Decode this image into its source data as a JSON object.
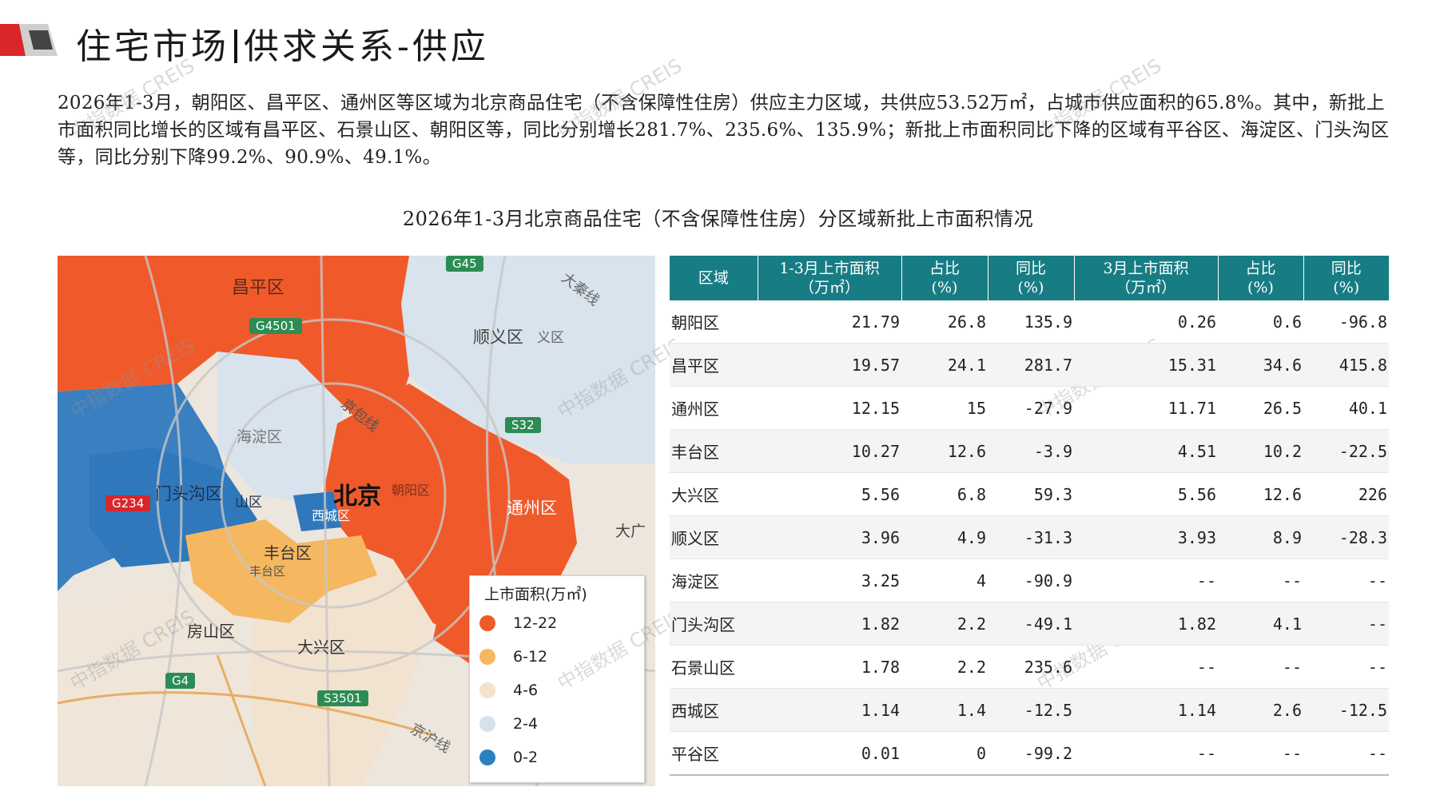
{
  "page": {
    "title_left": "住宅市场",
    "title_right": "供求关系-供应",
    "intro": "2026年1-3月，朝阳区、昌平区、通州区等区域为北京商品住宅（不含保障性住房）供应主力区域，共供应53.52万㎡，占城市供应面积的65.8%。其中，新批上市面积同比增长的区域有昌平区、石景山区、朝阳区等，同比分别增长281.7%、235.6%、135.9%；新批上市面积同比下降的区域有平谷区、海淀区、门头沟区等，同比分别下降99.2%、90.9%、49.1%。",
    "chart_title": "2026年1-3月北京商品住宅（不含保障性住房）分区域新批上市面积情况",
    "watermark": "中指数据 CREIS"
  },
  "map": {
    "labels": {
      "changping": "昌平区",
      "shunyi": "顺义区",
      "shunyi_small": "义区",
      "haidian": "海淀区",
      "mentougou": "门头沟区",
      "shijingshan": "石景山区",
      "beijing": "北京",
      "chaoyang": "朝阳区",
      "xicheng": "西城区",
      "tongzhou": "通州区",
      "fengtai": "丰台区",
      "fengtai_small": "丰台区",
      "fangshan": "房山区",
      "daxing": "大兴区",
      "daguang": "大广",
      "daqing": "大秦线",
      "jingbao": "京包线",
      "jinghu": "京沪线",
      "shan": "山区"
    },
    "shields": {
      "g45": "G45",
      "g4501": "G4501",
      "s32": "S32",
      "g234": "G234",
      "g4": "G4",
      "s3501": "S3501"
    },
    "legend": {
      "title": "上市面积(万㎡)",
      "items": [
        {
          "label": "12-22",
          "color": "#f05a2a"
        },
        {
          "label": "6-12",
          "color": "#f5b860"
        },
        {
          "label": "4-6",
          "color": "#f3e2cc"
        },
        {
          "label": "2-4",
          "color": "#d5e2ee"
        },
        {
          "label": "0-2",
          "color": "#2b80c0"
        }
      ]
    }
  },
  "table": {
    "headers": [
      {
        "l1": "区域",
        "l2": ""
      },
      {
        "l1": "1-3月上市面积",
        "l2": "（万㎡）"
      },
      {
        "l1": "占比",
        "l2": "(%)"
      },
      {
        "l1": "同比",
        "l2": "(%)"
      },
      {
        "l1": "3月上市面积",
        "l2": "（万㎡）"
      },
      {
        "l1": "占比",
        "l2": "(%)"
      },
      {
        "l1": "同比",
        "l2": "(%)"
      }
    ],
    "rows": [
      [
        "朝阳区",
        "21.79",
        "26.8",
        "135.9",
        "0.26",
        "0.6",
        "-96.8"
      ],
      [
        "昌平区",
        "19.57",
        "24.1",
        "281.7",
        "15.31",
        "34.6",
        "415.8"
      ],
      [
        "通州区",
        "12.15",
        "15",
        "-27.9",
        "11.71",
        "26.5",
        "40.1"
      ],
      [
        "丰台区",
        "10.27",
        "12.6",
        "-3.9",
        "4.51",
        "10.2",
        "-22.5"
      ],
      [
        "大兴区",
        "5.56",
        "6.8",
        "59.3",
        "5.56",
        "12.6",
        "226"
      ],
      [
        "顺义区",
        "3.96",
        "4.9",
        "-31.3",
        "3.93",
        "8.9",
        "-28.3"
      ],
      [
        "海淀区",
        "3.25",
        "4",
        "-90.9",
        "--",
        "--",
        "--"
      ],
      [
        "门头沟区",
        "1.82",
        "2.2",
        "-49.1",
        "1.82",
        "4.1",
        "--"
      ],
      [
        "石景山区",
        "1.78",
        "2.2",
        "235.6",
        "--",
        "--",
        "--"
      ],
      [
        "西城区",
        "1.14",
        "1.4",
        "-12.5",
        "1.14",
        "2.6",
        "-12.5"
      ],
      [
        "平谷区",
        "0.01",
        "0",
        "-99.2",
        "--",
        "--",
        "--"
      ]
    ]
  }
}
